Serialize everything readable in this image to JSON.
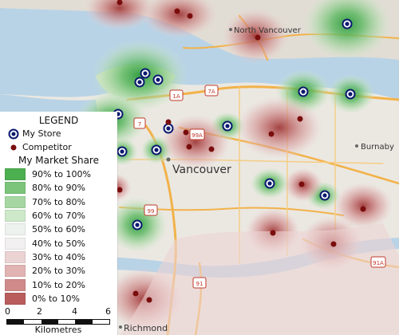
{
  "places": {
    "north_vancouver": "North Vancouver",
    "vancouver": "Vancouver",
    "burnaby": "Burnaby",
    "richmond": "Richmond"
  },
  "highways": {
    "h1a_a": "1A",
    "h7a": "7A",
    "h7": "7",
    "h99a": "99A",
    "h99": "99",
    "h91": "91",
    "h91a": "91A"
  },
  "legend": {
    "title": "LEGEND",
    "store_label": "My Store",
    "competitor_label": "Competitor",
    "share_title": "My Market Share",
    "bands": [
      {
        "label": "90% to 100%",
        "color": "#4caf50"
      },
      {
        "label": "80% to 90%",
        "color": "#7cc47a"
      },
      {
        "label": "70% to 80%",
        "color": "#a6d7a2"
      },
      {
        "label": "60% to 70%",
        "color": "#cde9ca"
      },
      {
        "label": "50% to 60%",
        "color": "#eef2ee"
      },
      {
        "label": "40% to 50%",
        "color": "#f2f0f0"
      },
      {
        "label": "30% to 40%",
        "color": "#ecd3d3"
      },
      {
        "label": "20% to 30%",
        "color": "#e2b3b3"
      },
      {
        "label": "10% to 20%",
        "color": "#cf8a8a"
      },
      {
        "label": "0% to 10%",
        "color": "#b85c5c"
      }
    ]
  },
  "scale": {
    "ticks": [
      "0",
      "2",
      "4",
      "6"
    ],
    "unit": "Kilometres"
  },
  "colors": {
    "store": "#0a1a6e",
    "competitor": "#7a0d0d",
    "water": "#b9d3e6",
    "land": "#ebe8e2",
    "road": "#f2b24a"
  }
}
